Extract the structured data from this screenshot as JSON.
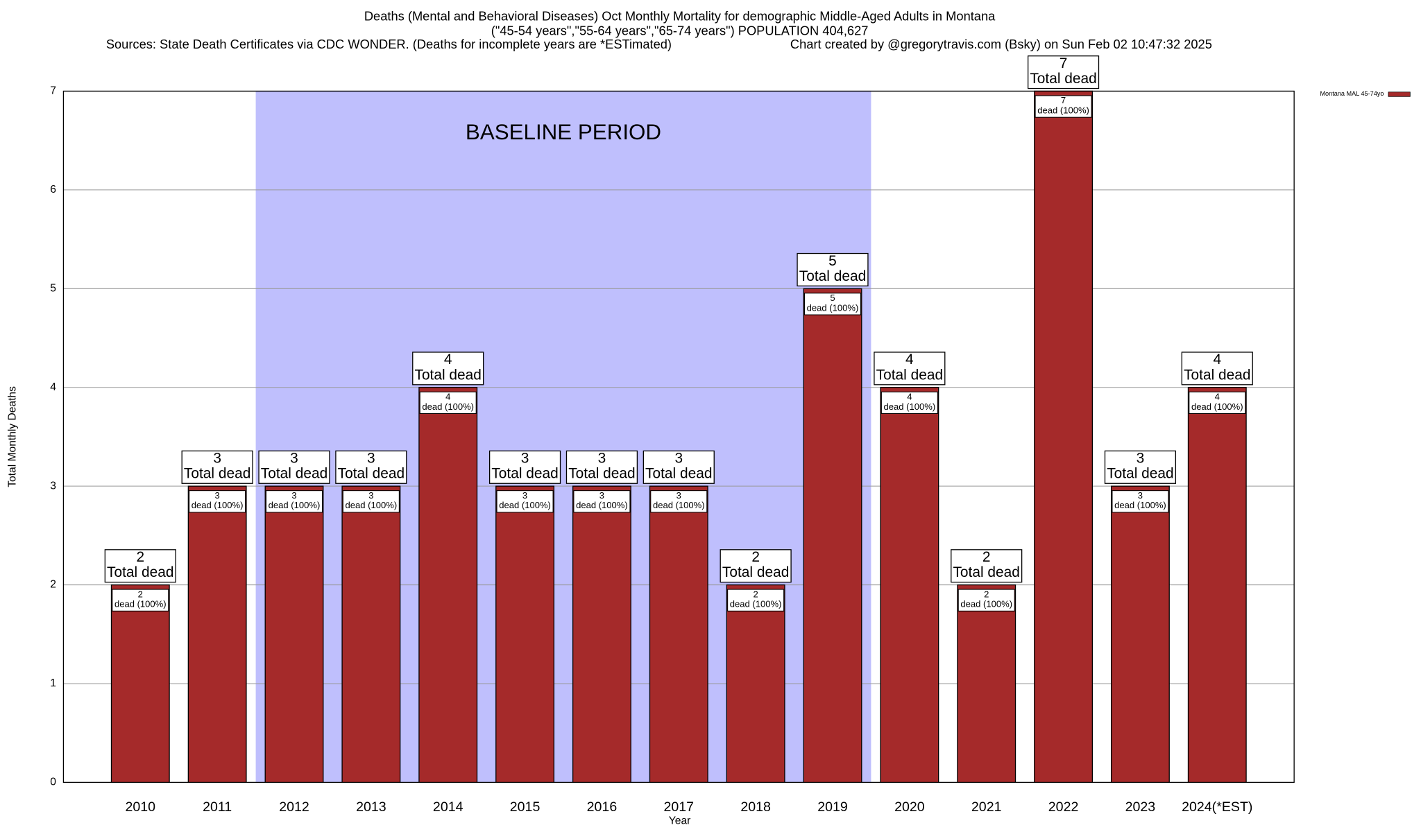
{
  "chart_data": {
    "type": "bar",
    "title": "Deaths (Mental and Behavioral Diseases) Oct Monthly Mortality for demographic Middle-Aged Adults in Montana",
    "subtitle": "(\"45-54 years\",\"55-64 years\",\"65-74 years\") POPULATION 404,627",
    "source": "Sources: State Death Certificates via CDC WONDER. (Deaths for incomplete years are *ESTimated)",
    "credit": "Chart created by @gregorytravis.com (Bsky) on Sun Feb 02 10:47:32 2025",
    "x_label": "Year",
    "y_label": "Total Monthly Deaths",
    "categories": [
      "2010",
      "2011",
      "2012",
      "2013",
      "2014",
      "2015",
      "2016",
      "2017",
      "2018",
      "2019",
      "2020",
      "2021",
      "2022",
      "2023",
      "2024(*EST)"
    ],
    "series": [
      {
        "name": "Montana MAL 45-74yo",
        "color": "#a52a2a",
        "values": [
          2,
          3,
          3,
          3,
          4,
          3,
          3,
          3,
          2,
          5,
          4,
          2,
          7,
          3,
          4
        ]
      }
    ],
    "total_label": "Total dead",
    "segment_label": "dead (100%)",
    "baseline": {
      "label": "BASELINE PERIOD",
      "from": "2012",
      "to": "2019",
      "color": "#bfbffd"
    },
    "ylim": [
      0,
      7
    ],
    "yticks": [
      0,
      1,
      2,
      3,
      4,
      5,
      6,
      7
    ],
    "grid": true,
    "legend": "top-right"
  }
}
